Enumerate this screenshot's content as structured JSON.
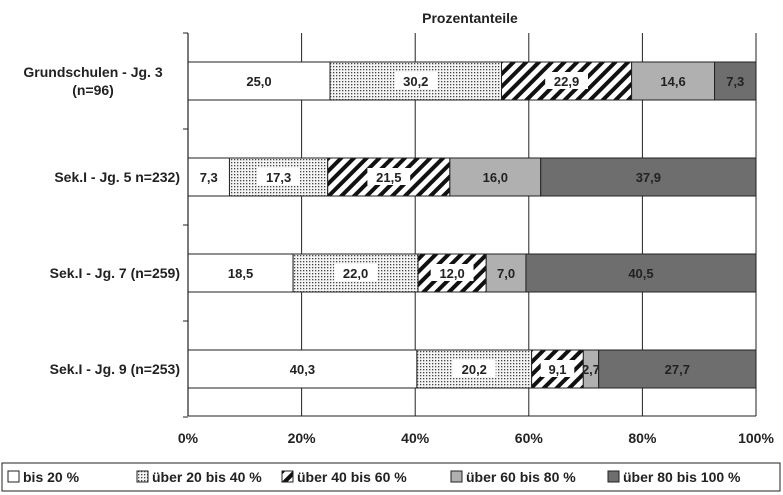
{
  "chart_data": {
    "type": "bar",
    "orientation": "horizontal",
    "stacked": true,
    "title": "Prozentanteile",
    "xlabel": "",
    "ylabel": "",
    "xlim": [
      0,
      100
    ],
    "x_ticks": [
      "0%",
      "20%",
      "40%",
      "60%",
      "80%",
      "100%"
    ],
    "grid": true,
    "legend_position": "bottom",
    "categories": [
      {
        "line1": "Grundschulen - Jg. 3",
        "line2": "(n=96)"
      },
      {
        "line1": "Sek.I - Jg. 5 n=232)",
        "line2": ""
      },
      {
        "line1": "Sek.I - Jg. 7 (n=259)",
        "line2": ""
      },
      {
        "line1": "Sek.I - Jg. 9 (n=253)",
        "line2": ""
      }
    ],
    "series": [
      {
        "name": "bis 20 %",
        "pattern": "white",
        "values": [
          25.0,
          7.3,
          18.5,
          40.3
        ],
        "labels": [
          "25,0",
          "7,3",
          "18,5",
          "40,3"
        ]
      },
      {
        "name": "über 20 bis 40 %",
        "pattern": "dots",
        "values": [
          30.2,
          17.3,
          22.0,
          20.2
        ],
        "labels": [
          "30,2",
          "17,3",
          "22,0",
          "20,2"
        ]
      },
      {
        "name": "über 40 bis 60 %",
        "pattern": "diagonal-stripes",
        "values": [
          22.9,
          21.5,
          12.0,
          9.1
        ],
        "labels": [
          "22,9",
          "21,5",
          "12,0",
          "9,1"
        ]
      },
      {
        "name": "über 60 bis 80 %",
        "pattern": "light-gray",
        "values": [
          14.6,
          16.0,
          7.0,
          2.7
        ],
        "labels": [
          "14,6",
          "16,0",
          "7,0",
          "2,7"
        ]
      },
      {
        "name": "über 80 bis 100 %",
        "pattern": "dark-gray",
        "values": [
          7.3,
          37.9,
          40.5,
          27.7
        ],
        "labels": [
          "7,3",
          "37,9",
          "40,5",
          "27,7"
        ]
      }
    ],
    "colors": {
      "light_gray": "#b0b0b0",
      "dark_gray": "#6e6e6e",
      "gridline": "#222222",
      "text": "#222222"
    }
  }
}
